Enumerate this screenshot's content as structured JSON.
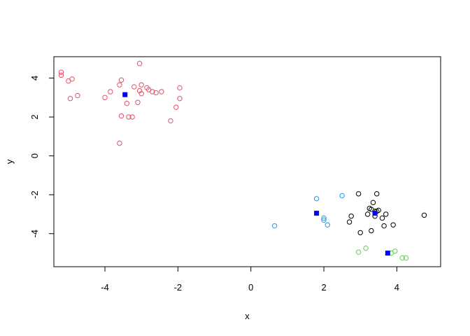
{
  "chart_data": {
    "type": "scatter",
    "title": "",
    "xlabel": "x",
    "ylabel": "y",
    "xlim": [
      -5.4,
      5.2
    ],
    "ylim": [
      -5.7,
      5.1
    ],
    "xticks": [
      -4,
      -2,
      0,
      2,
      4
    ],
    "yticks": [
      -4,
      -2,
      0,
      2,
      4
    ],
    "xtick_labels": [
      "-4",
      "-2",
      "0",
      "2",
      "4"
    ],
    "ytick_labels": [
      "-4",
      "-2",
      "0",
      "2",
      "4"
    ],
    "grid": false,
    "legend": "none",
    "series": [
      {
        "color": "#000000",
        "marker": "open-circle",
        "points": [
          [
            2.95,
            -1.95
          ],
          [
            3.45,
            -1.95
          ],
          [
            4.75,
            -3.05
          ],
          [
            3.35,
            -2.4
          ],
          [
            3.3,
            -2.75
          ],
          [
            3.4,
            -2.85
          ],
          [
            3.45,
            -2.85
          ],
          [
            3.5,
            -2.8
          ],
          [
            3.2,
            -3.0
          ],
          [
            3.4,
            -3.1
          ],
          [
            3.6,
            -3.2
          ],
          [
            3.7,
            -3.0
          ],
          [
            2.75,
            -3.1
          ],
          [
            2.7,
            -3.4
          ],
          [
            3.65,
            -3.6
          ],
          [
            3.9,
            -3.55
          ],
          [
            3.3,
            -3.85
          ],
          [
            3.0,
            -3.95
          ],
          [
            3.25,
            -2.7
          ]
        ]
      },
      {
        "color": "#DF536B",
        "marker": "open-circle",
        "points": [
          [
            -5.2,
            4.3
          ],
          [
            -5.2,
            4.15
          ],
          [
            -4.9,
            3.95
          ],
          [
            -5.0,
            3.85
          ],
          [
            -4.75,
            3.1
          ],
          [
            -4.95,
            2.95
          ],
          [
            -4.0,
            3.0
          ],
          [
            -3.85,
            3.3
          ],
          [
            -3.55,
            3.9
          ],
          [
            -3.6,
            3.65
          ],
          [
            -3.05,
            4.75
          ],
          [
            -3.0,
            3.65
          ],
          [
            -3.05,
            3.35
          ],
          [
            -2.85,
            3.5
          ],
          [
            -2.8,
            3.4
          ],
          [
            -2.7,
            3.3
          ],
          [
            -2.6,
            3.25
          ],
          [
            -2.45,
            3.3
          ],
          [
            -3.2,
            3.55
          ],
          [
            -3.0,
            3.2
          ],
          [
            -1.95,
            3.5
          ],
          [
            -1.95,
            2.95
          ],
          [
            -2.05,
            2.5
          ],
          [
            -3.4,
            2.7
          ],
          [
            -3.1,
            2.75
          ],
          [
            -3.25,
            2.0
          ],
          [
            -3.35,
            2.0
          ],
          [
            -3.55,
            2.05
          ],
          [
            -2.2,
            1.8
          ],
          [
            -3.6,
            0.65
          ]
        ]
      },
      {
        "color": "#61D04F",
        "marker": "open-circle",
        "points": [
          [
            2.95,
            -4.95
          ],
          [
            3.15,
            -4.75
          ],
          [
            3.95,
            -4.9
          ],
          [
            3.85,
            -5.0
          ],
          [
            4.15,
            -5.25
          ],
          [
            4.25,
            -5.25
          ]
        ]
      },
      {
        "color": "#2297E6",
        "marker": "open-circle",
        "points": [
          [
            1.8,
            -2.2
          ],
          [
            2.5,
            -2.05
          ],
          [
            2.0,
            -3.2
          ],
          [
            2.0,
            -3.3
          ],
          [
            2.1,
            -3.55
          ],
          [
            0.65,
            -3.6
          ]
        ]
      },
      {
        "color": "#0000FF",
        "marker": "filled-square",
        "points": [
          [
            -3.45,
            3.15
          ],
          [
            1.8,
            -2.95
          ],
          [
            3.4,
            -2.95
          ],
          [
            3.75,
            -5.0
          ]
        ]
      }
    ]
  }
}
